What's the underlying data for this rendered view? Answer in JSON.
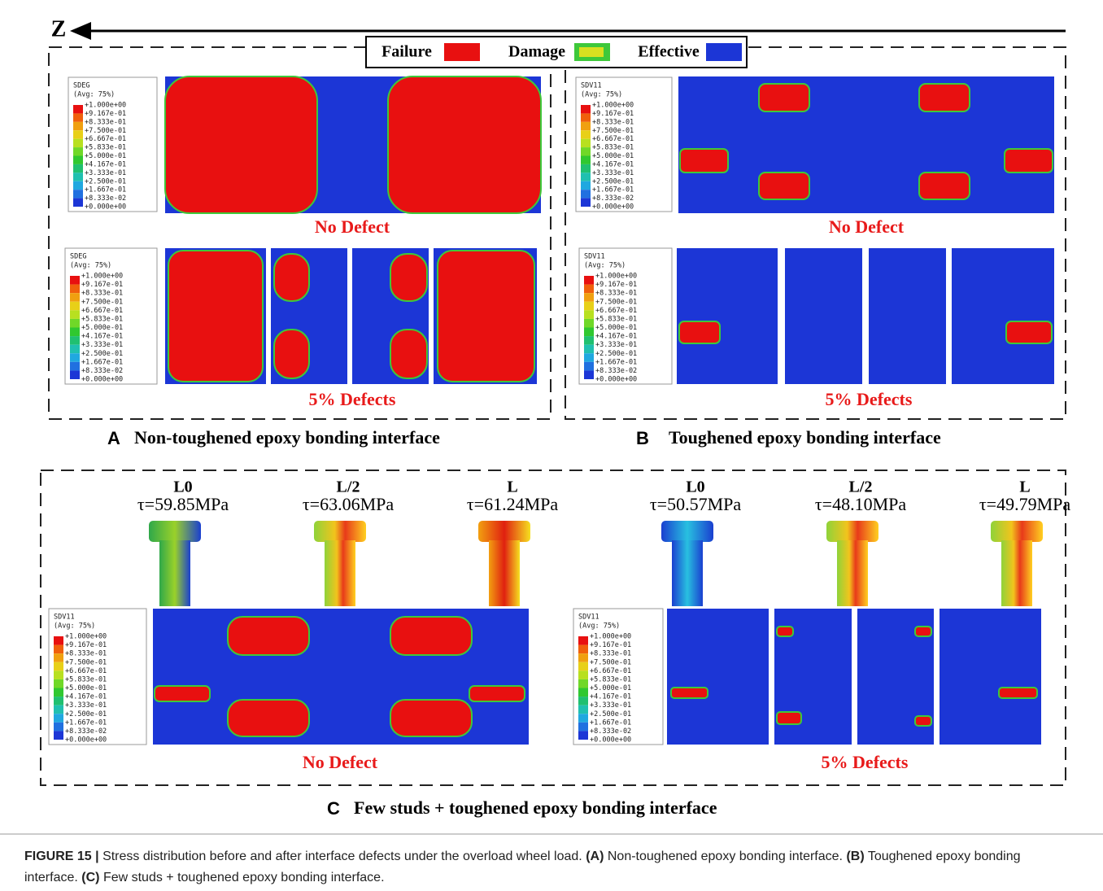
{
  "header": {
    "axis": "Z"
  },
  "legend": {
    "failure": "Failure",
    "damage": "Damage",
    "effective": "Effective"
  },
  "panels": [
    {
      "letter": "A",
      "title": "Non-toughened epoxy bonding interface",
      "groups": [
        {
          "caption": "No Defect",
          "contour_legend": {
            "title": "SDEG",
            "avg": "(Avg: 75%)",
            "labels": [
              "+1.000e+00",
              "+9.167e-01",
              "+8.333e-01",
              "+7.500e-01",
              "+6.667e-01",
              "+5.833e-01",
              "+5.000e-01",
              "+4.167e-01",
              "+3.333e-01",
              "+2.500e-01",
              "+1.667e-01",
              "+8.333e-02",
              "+0.000e+00"
            ]
          }
        },
        {
          "caption": "5% Defects",
          "contour_legend": {
            "title": "SDEG",
            "avg": "(Avg: 75%)",
            "labels": [
              "+1.000e+00",
              "+9.167e-01",
              "+8.333e-01",
              "+7.500e-01",
              "+6.667e-01",
              "+5.833e-01",
              "+5.000e-01",
              "+4.167e-01",
              "+3.333e-01",
              "+2.500e-01",
              "+1.667e-01",
              "+8.333e-02",
              "+0.000e+00"
            ]
          }
        }
      ]
    },
    {
      "letter": "B",
      "title": "Toughened epoxy bonding interface",
      "groups": [
        {
          "caption": "No Defect",
          "contour_legend": {
            "title": "SDV11",
            "avg": "(Avg: 75%)",
            "labels": [
              "+1.000e+00",
              "+9.167e-01",
              "+8.333e-01",
              "+7.500e-01",
              "+6.667e-01",
              "+5.833e-01",
              "+5.000e-01",
              "+4.167e-01",
              "+3.333e-01",
              "+2.500e-01",
              "+1.667e-01",
              "+8.333e-02",
              "+0.000e+00"
            ]
          }
        },
        {
          "caption": "5% Defects",
          "contour_legend": {
            "title": "SDV11",
            "avg": "(Avg: 75%)",
            "labels": [
              "+1.000e+00",
              "+9.167e-01",
              "+8.333e-01",
              "+7.500e-01",
              "+6.667e-01",
              "+5.833e-01",
              "+5.000e-01",
              "+4.167e-01",
              "+3.333e-01",
              "+2.500e-01",
              "+1.667e-01",
              "+8.333e-02",
              "+0.000e+00"
            ]
          }
        }
      ]
    },
    {
      "letter": "C",
      "title": "Few studs + toughened epoxy bonding interface",
      "groups": [
        {
          "caption": "No Defect",
          "contour_legend": {
            "title": "SDV11",
            "avg": "(Avg: 75%)",
            "labels": [
              "+1.000e+00",
              "+9.167e-01",
              "+8.333e-01",
              "+7.500e-01",
              "+6.667e-01",
              "+5.833e-01",
              "+5.000e-01",
              "+4.167e-01",
              "+3.333e-01",
              "+2.500e-01",
              "+1.667e-01",
              "+8.333e-02",
              "+0.000e+00"
            ]
          },
          "studs": [
            {
              "position": "L0",
              "stress": "τ=59.85MPa"
            },
            {
              "position": "L/2",
              "stress": "τ=63.06MPa"
            },
            {
              "position": "L",
              "stress": "τ=61.24MPa"
            }
          ]
        },
        {
          "caption": "5% Defects",
          "contour_legend": {
            "title": "SDV11",
            "avg": "(Avg: 75%)",
            "labels": [
              "+1.000e+00",
              "+9.167e-01",
              "+8.333e-01",
              "+7.500e-01",
              "+6.667e-01",
              "+5.833e-01",
              "+5.000e-01",
              "+4.167e-01",
              "+3.333e-01",
              "+2.500e-01",
              "+1.667e-01",
              "+8.333e-02",
              "+0.000e+00"
            ]
          },
          "studs": [
            {
              "position": "L0",
              "stress": "τ=50.57MPa"
            },
            {
              "position": "L/2",
              "stress": "τ=48.10MPa"
            },
            {
              "position": "L",
              "stress": "τ=49.79MPa"
            }
          ]
        }
      ]
    }
  ],
  "figure_caption": {
    "label": "FIGURE 15 |",
    "text": "Stress distribution before and after interface defects under the overload wheel load.",
    "a_label": "(A)",
    "a_text": "Non-toughened epoxy bonding interface.",
    "b_label": "(B)",
    "b_text": "Toughened epoxy bonding interface.",
    "c_label": "(C)",
    "c_text": "Few studs + toughened epoxy bonding interface."
  }
}
